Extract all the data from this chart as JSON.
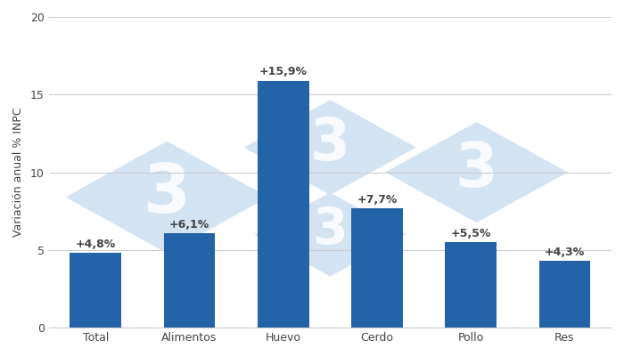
{
  "categories": [
    "Total",
    "Alimentos",
    "Huevo",
    "Cerdo",
    "Pollo",
    "Res"
  ],
  "values": [
    4.8,
    6.1,
    15.9,
    7.7,
    5.5,
    4.3
  ],
  "labels": [
    "+4,8%",
    "+6,1%",
    "+15,9%",
    "+7,7%",
    "+5,5%",
    "+4,3%"
  ],
  "bar_color": "#2563a8",
  "background_color": "#ffffff",
  "ylabel": "Variación anual % INPC",
  "ylim": [
    0,
    20
  ],
  "yticks": [
    0,
    5,
    10,
    15,
    20
  ],
  "grid_color": "#cccccc",
  "label_color": "#444444",
  "label_fontsize": 9,
  "axis_fontsize": 9,
  "bar_width": 0.55,
  "watermark_color": "#cddff0",
  "watermark_alpha": 0.85,
  "watermark_fontsize": 55
}
